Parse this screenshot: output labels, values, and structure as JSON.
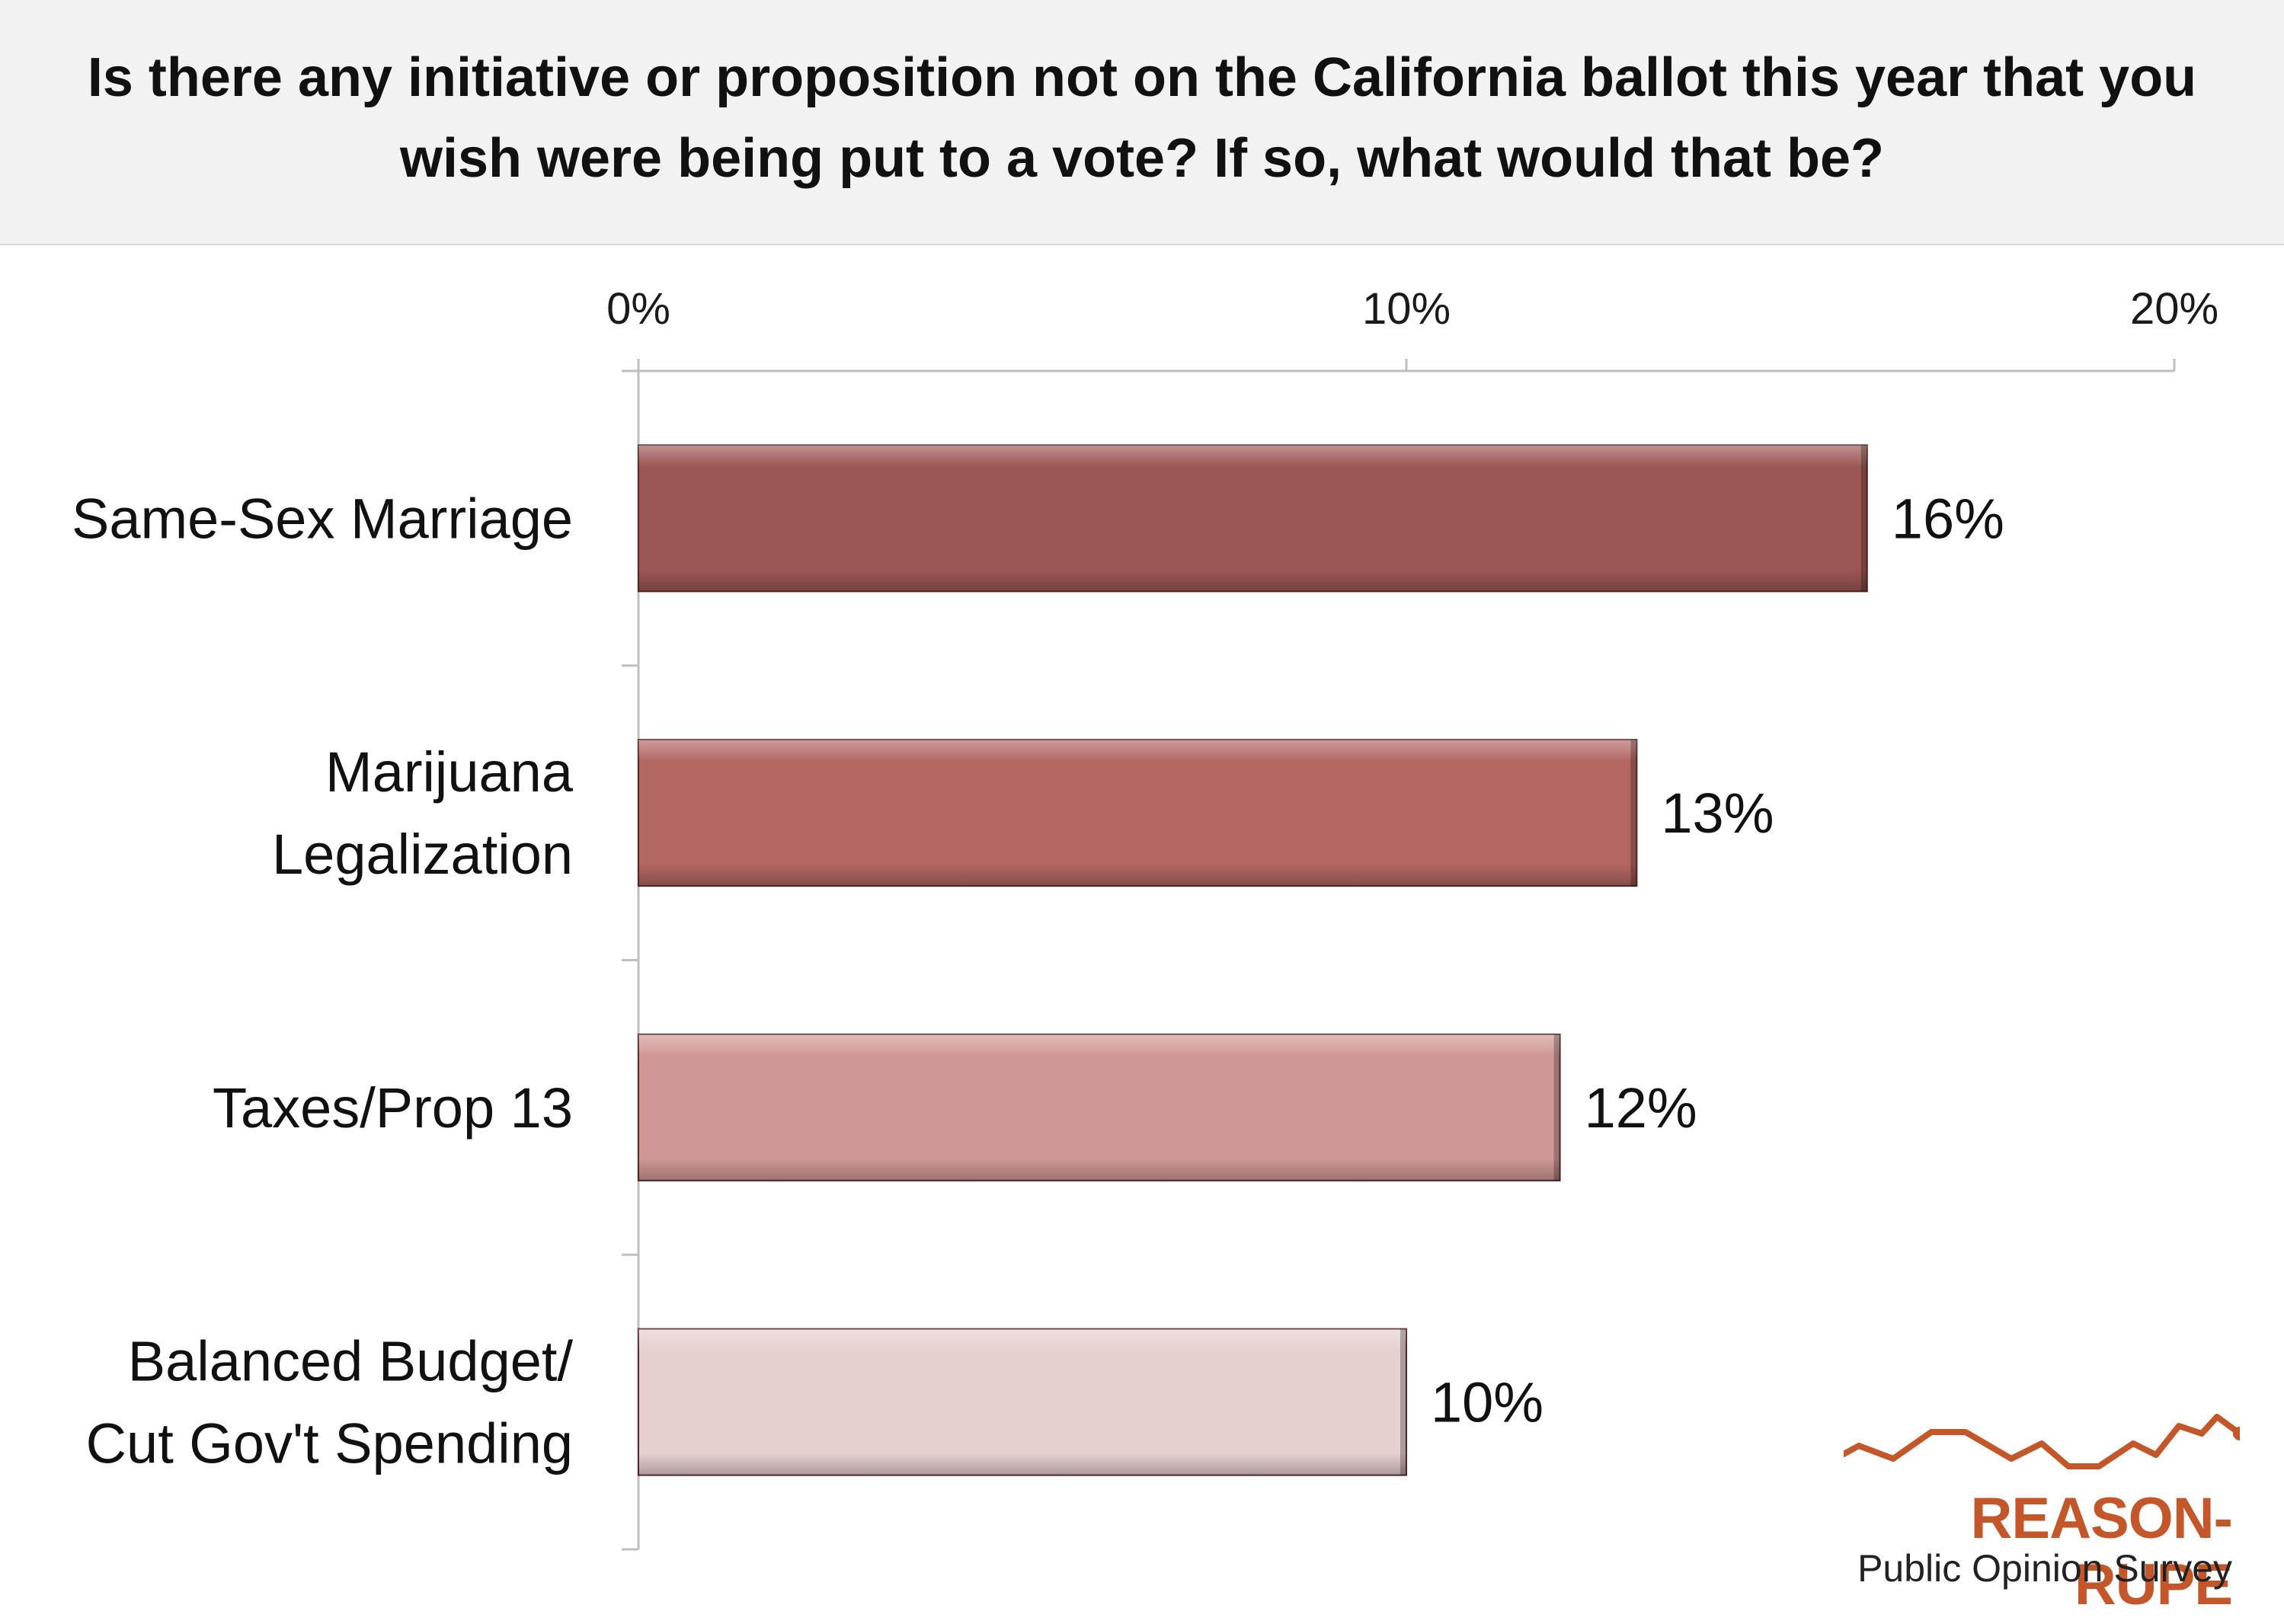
{
  "title": "Is there any initiative or proposition not on the California ballot this year that you wish were being put to a vote? If so, what would that be?",
  "chart_data": {
    "type": "bar",
    "orientation": "horizontal",
    "categories": [
      [
        "Same-Sex Marriage"
      ],
      [
        "Marijuana",
        "Legalization"
      ],
      [
        "Taxes/Prop 13"
      ],
      [
        "Balanced Budget/",
        "Cut Gov't Spending"
      ]
    ],
    "values": [
      16,
      13,
      12,
      10
    ],
    "value_labels": [
      "16%",
      "13%",
      "12%",
      "10%"
    ],
    "bar_colors": [
      "#9c5755",
      "#b36762",
      "#cf9896",
      "#e6cfcf"
    ],
    "xlim": [
      0,
      20
    ],
    "xticks": [
      0,
      10,
      20
    ],
    "xtick_labels": [
      "0%",
      "10%",
      "20%"
    ],
    "x_axis_position": "top",
    "grid": false,
    "legend": "none"
  },
  "logo": {
    "name": "REASON-RUPE",
    "subtitle": "Public Opinion Survey",
    "color": "#c4572a"
  }
}
